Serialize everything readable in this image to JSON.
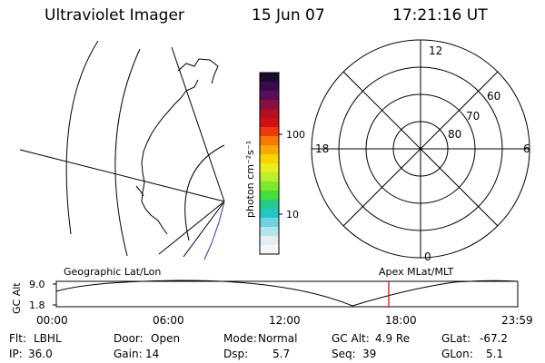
{
  "header": {
    "title": "Ultraviolet Imager",
    "date": "15 Jun 07",
    "time": "17:21:16 UT"
  },
  "colorbar": {
    "unit_label": "photon cm⁻²s⁻¹",
    "ticks": [
      "100",
      "10"
    ],
    "colors": [
      "#1a0a2e",
      "#3b0a4a",
      "#5a0e5a",
      "#8a0f3c",
      "#b01020",
      "#d31010",
      "#ee3a0a",
      "#f77a00",
      "#f9a800",
      "#f5d400",
      "#e7ee1a",
      "#b8ef2a",
      "#7bea2e",
      "#3fe03b",
      "#27c88b",
      "#20c7c7",
      "#6fd2dc",
      "#b5e3ea",
      "#e3eef2",
      "#f4f6f6"
    ]
  },
  "polar": {
    "mlt_labels": {
      "top": "12",
      "left": "18",
      "right": "6",
      "bottom": "0"
    },
    "lat_labels": [
      "60",
      "70",
      "80"
    ]
  },
  "timeline": {
    "left_label": "Geographic Lat/Lon",
    "right_label": "Apex MLat/MLT",
    "yaxis_title": "GC Alt",
    "y_ticks": [
      "9.0",
      "1.8"
    ],
    "x_ticks": [
      "00:00",
      "06:00",
      "12:00",
      "18:00",
      "23:59"
    ],
    "marker_color": "#d00000"
  },
  "status": [
    [
      {
        "label": "Flt:",
        "value": "LBHL"
      },
      {
        "label": "Door:",
        "value": "Open"
      },
      {
        "label": "Mode:",
        "value": "Normal"
      },
      {
        "label": "GC Alt:",
        "value": "4.9 Re"
      },
      {
        "label": "GLat:",
        "value": "-67.2"
      }
    ],
    [
      {
        "label": "IP:",
        "value": "36.0"
      },
      {
        "label": "Gain:",
        "value": "14"
      },
      {
        "label": "Dsp:",
        "value": "5.7"
      },
      {
        "label": "Seq:",
        "value": "39"
      },
      {
        "label": "GLon:",
        "value": "5.1"
      }
    ]
  ]
}
